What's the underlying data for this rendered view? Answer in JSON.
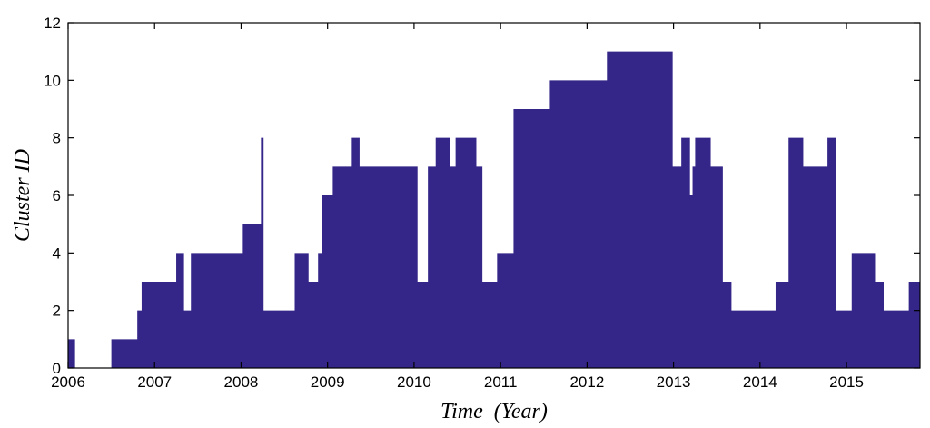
{
  "chart_data": {
    "type": "area",
    "title": "",
    "xlabel": "Time  (Year)",
    "ylabel": "Cluster ID",
    "xlim": [
      2006.0,
      2015.85
    ],
    "ylim": [
      0,
      12
    ],
    "xticks": [
      2006,
      2007,
      2008,
      2009,
      2010,
      2011,
      2012,
      2013,
      2014,
      2015
    ],
    "xtick_labels": [
      "2006",
      "2007",
      "2008",
      "2009",
      "2010",
      "2011",
      "2012",
      "2013",
      "2014",
      "2015"
    ],
    "yticks": [
      0,
      2,
      4,
      6,
      8,
      10,
      12
    ],
    "ytick_labels": [
      "0",
      "2",
      "4",
      "6",
      "8",
      "10",
      "12"
    ],
    "grid": false,
    "color": "#342689",
    "series": [
      {
        "step": "post",
        "x": [
          2006.0,
          2006.08,
          2006.5,
          2006.8,
          2006.85,
          2006.99,
          2007.25,
          2007.34,
          2007.42,
          2007.77,
          2008.02,
          2008.2,
          2008.23,
          2008.26,
          2008.42,
          2008.62,
          2008.78,
          2008.89,
          2008.94,
          2009.06,
          2009.28,
          2009.37,
          2010.04,
          2010.16,
          2010.25,
          2010.42,
          2010.48,
          2010.72,
          2010.79,
          2010.96,
          2011.15,
          2011.35,
          2011.57,
          2011.99,
          2012.23,
          2012.48,
          2012.99,
          2013.09,
          2013.19,
          2013.22,
          2013.25,
          2013.43,
          2013.57,
          2013.61,
          2013.67,
          2013.87,
          2014.18,
          2014.33,
          2014.5,
          2014.78,
          2014.88,
          2015.06,
          2015.33,
          2015.43,
          2015.72,
          2015.85
        ],
        "y": [
          1,
          0,
          1,
          2,
          3,
          3,
          4,
          2,
          4,
          4,
          5,
          5,
          8,
          2,
          2,
          4,
          3,
          4,
          6,
          7,
          8,
          7,
          3,
          7,
          8,
          7,
          8,
          7,
          3,
          4,
          9,
          9,
          10,
          10,
          11,
          11,
          7,
          8,
          6,
          7,
          8,
          7,
          3,
          3,
          2,
          2,
          3,
          8,
          7,
          8,
          2,
          4,
          3,
          2,
          3,
          3
        ]
      }
    ]
  }
}
